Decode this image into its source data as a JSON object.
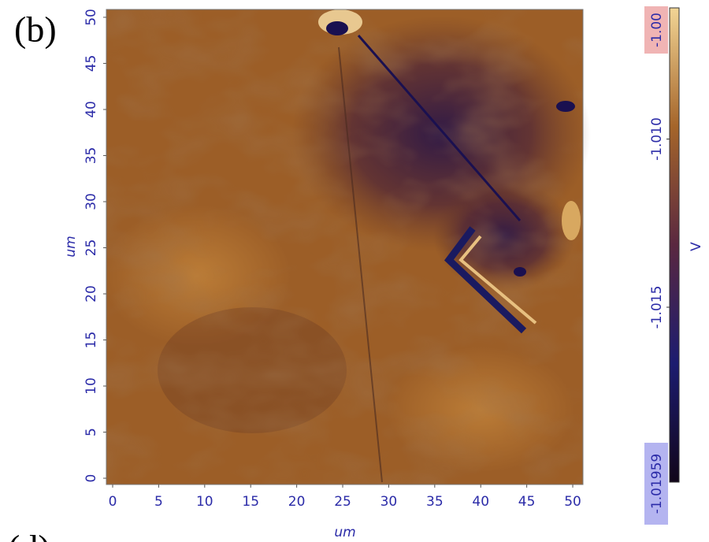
{
  "chart_data": {
    "type": "heatmap",
    "panel_label": "(b)",
    "next_panel_label": "(d)",
    "x_label": "um",
    "y_label": "um",
    "xlim": [
      -0.685,
      51.11
    ],
    "ylim": [
      -0.68,
      50.85
    ],
    "xticks": [
      0,
      5,
      10,
      15,
      20,
      25,
      30,
      35,
      40,
      45,
      50
    ],
    "yticks": [
      0,
      5,
      10,
      15,
      20,
      25,
      30,
      35,
      40,
      45,
      50
    ],
    "colorbar": {
      "label": "V",
      "lim": [
        -1.0202,
        -1.0061
      ],
      "ticks": [
        {
          "value": -1.01,
          "label": "-1.010"
        },
        -1.015
      ],
      "max_label": "-1.00",
      "min_label": "-1.01959",
      "colors": [
        "#12061a",
        "#1c1c70",
        "#5a2840",
        "#a5652a",
        "#f2d595"
      ]
    },
    "axis_color": "#2b2ba8"
  }
}
